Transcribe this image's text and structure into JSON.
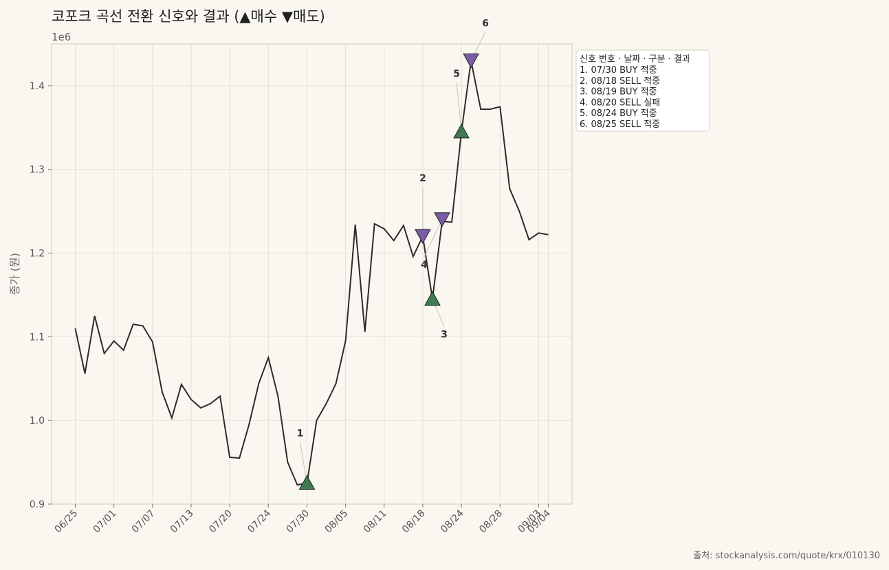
{
  "chart_data": {
    "type": "line",
    "title": "코포크 곡선 전환 신호와 결과 (▲매수 ▼매도)",
    "ylabel": "종가 (원)",
    "y_exponent_label": "1e6",
    "ylim": [
      0.9,
      1.45
    ],
    "yticks": [
      "0.9",
      "1.0",
      "1.1",
      "1.2",
      "1.3",
      "1.4"
    ],
    "ytick_values": [
      0.9,
      1.0,
      1.1,
      1.2,
      1.3,
      1.4
    ],
    "xticks": [
      "06/25",
      "07/01",
      "07/07",
      "07/13",
      "07/20",
      "07/24",
      "07/30",
      "08/05",
      "08/11",
      "08/18",
      "08/24",
      "08/28",
      "09/03",
      "09/04"
    ],
    "xtick_index": [
      0,
      4,
      8,
      12,
      16,
      20,
      24,
      28,
      32,
      36,
      40,
      44,
      48,
      49
    ],
    "grid": true,
    "series": [
      {
        "values": [
          1.11,
          1.056,
          1.125,
          1.08,
          1.095,
          1.084,
          1.115,
          1.113,
          1.094,
          1.034,
          1.003,
          1.043,
          1.025,
          1.015,
          1.02,
          1.029,
          0.956,
          0.955,
          0.995,
          1.044,
          1.075,
          1.029,
          0.95,
          0.923,
          0.925,
          1.0,
          1.02,
          1.044,
          1.095,
          1.234,
          1.106,
          1.235,
          1.229,
          1.215,
          1.233,
          1.196,
          1.22,
          1.145,
          1.238,
          1.237,
          1.345,
          1.43,
          1.372,
          1.372,
          1.375,
          1.277,
          1.25,
          1.216,
          1.224,
          1.222
        ]
      }
    ],
    "signals": [
      {
        "label": "1",
        "index": 24,
        "type": "buy",
        "price": 0.925
      },
      {
        "label": "2",
        "index": 36,
        "type": "sell",
        "price": 1.22
      },
      {
        "label": "3",
        "index": 37,
        "type": "buy",
        "price": 1.145
      },
      {
        "label": "4",
        "index": 38,
        "type": "sell",
        "price": 1.24
      },
      {
        "label": "5",
        "index": 40,
        "type": "buy",
        "price": 1.345
      },
      {
        "label": "6",
        "index": 41,
        "type": "sell",
        "price": 1.43
      }
    ],
    "legend_placement": "top-right outside",
    "legend_title": "신호 번호 · 날짜 · 구분 · 결과",
    "legend_entries": [
      "1. 07/30 BUY 적중",
      "2. 08/18 SELL 적중",
      "3. 08/19 BUY 적중",
      "4. 08/20 SELL 실패",
      "5. 08/24 BUY 적중",
      "6. 08/25 SELL 적중"
    ],
    "source": "출처: stockanalysis.com/quote/krx/010130",
    "colors": {
      "line": "#2b2b2b",
      "buy": "#3f7a52",
      "sell": "#7b5ba6",
      "background": "#faf7f1",
      "grid": "#e4e0d8",
      "frame": "#d6d1c2"
    }
  }
}
